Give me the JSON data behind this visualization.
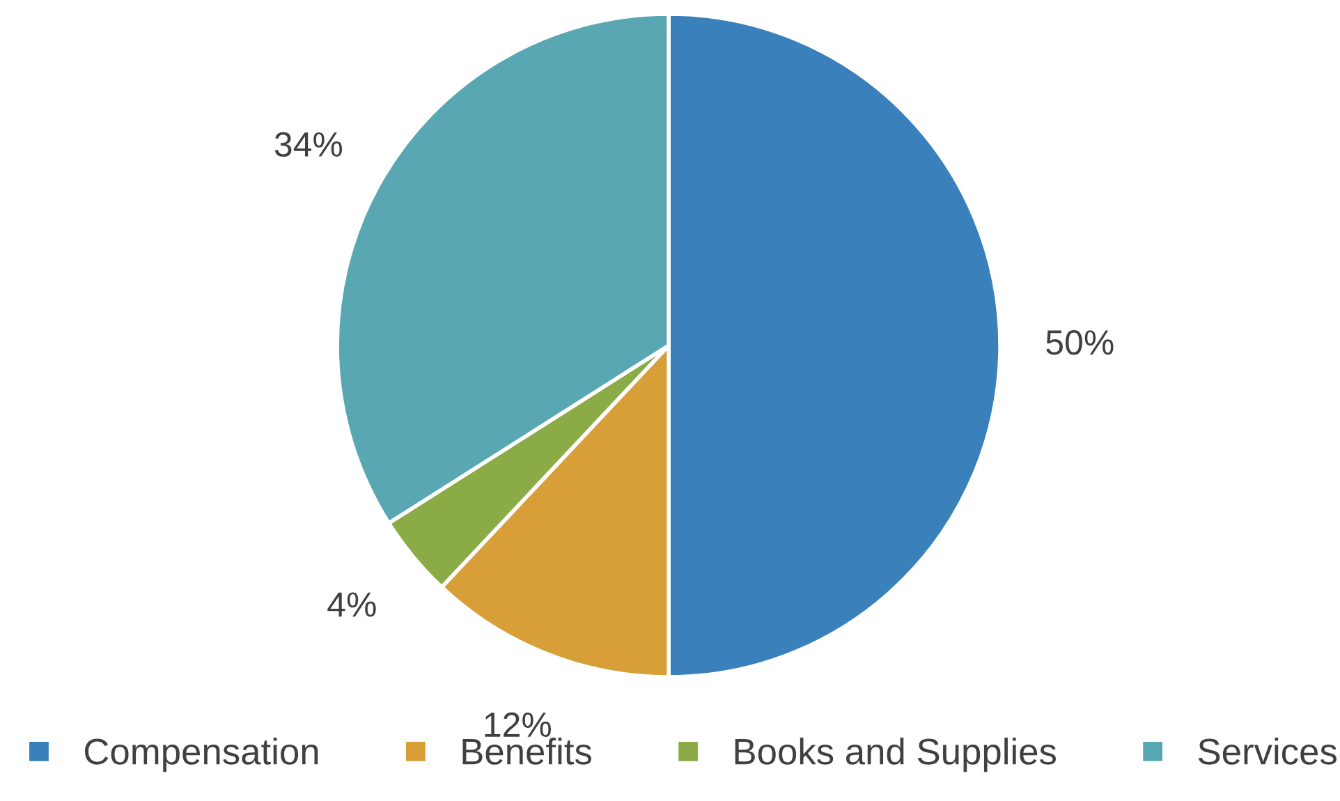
{
  "chart_data": {
    "type": "pie",
    "categories": [
      "Compensation",
      "Benefits",
      "Books and Supplies",
      "Services"
    ],
    "values": [
      50,
      12,
      4,
      34
    ],
    "colors": [
      "#3a80ba",
      "#d89f38",
      "#8aab45",
      "#5aa7b4"
    ],
    "value_labels": [
      "50%",
      "12%",
      "4%",
      "34%"
    ],
    "legend": "bottom"
  }
}
